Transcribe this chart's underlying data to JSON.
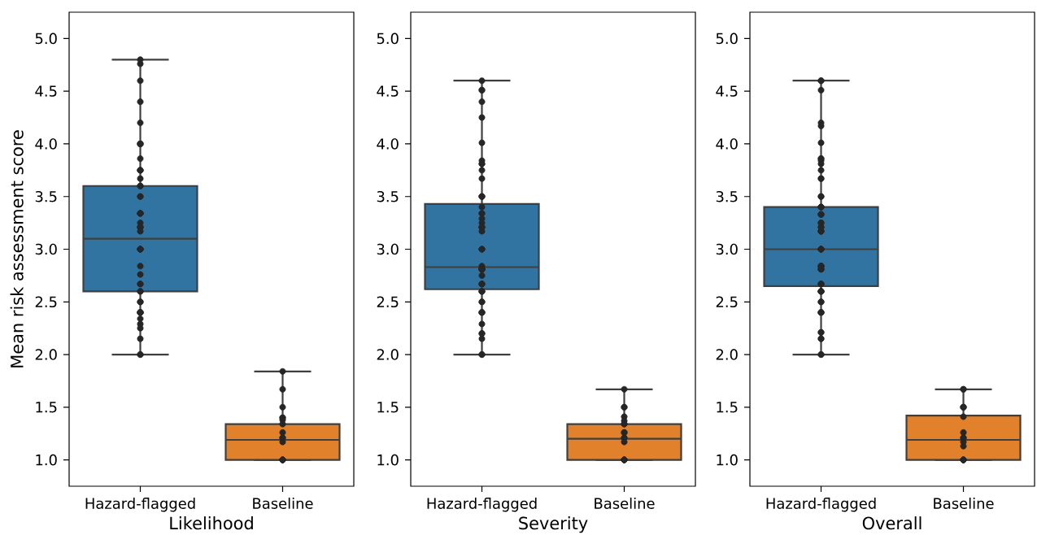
{
  "chart_data": [
    {
      "type": "box",
      "categories": [
        "Hazard-flagged",
        "Baseline"
      ],
      "xlabel": "Likelihood",
      "ylabel": "Mean risk assessment score",
      "ylim": [
        0.75,
        5.25
      ],
      "yticks": [
        {
          "value": 1.0,
          "label": "1.0"
        },
        {
          "value": 1.5,
          "label": "1.5"
        },
        {
          "value": 2.0,
          "label": "2.0"
        },
        {
          "value": 2.5,
          "label": "2.5"
        },
        {
          "value": 3.0,
          "label": "3.0"
        },
        {
          "value": 3.5,
          "label": "3.5"
        },
        {
          "value": 4.0,
          "label": "4.0"
        },
        {
          "value": 4.5,
          "label": "4.5"
        },
        {
          "value": 5.0,
          "label": "5.0"
        }
      ],
      "colors": [
        "#3274a1",
        "#e1812c"
      ],
      "boxes": [
        {
          "low": 2.0,
          "q1": 2.6,
          "median": 3.1,
          "q3": 3.6,
          "high": 4.8
        },
        {
          "low": 1.0,
          "q1": 1.0,
          "median": 1.19,
          "q3": 1.34,
          "high": 1.84
        }
      ],
      "series": [
        {
          "type": "scatter",
          "color": "#262626",
          "marker": "circle",
          "x": [
            "Hazard-flagged",
            "Hazard-flagged",
            "Hazard-flagged",
            "Hazard-flagged",
            "Hazard-flagged",
            "Hazard-flagged",
            "Hazard-flagged",
            "Hazard-flagged",
            "Hazard-flagged",
            "Hazard-flagged",
            "Hazard-flagged",
            "Hazard-flagged",
            "Hazard-flagged",
            "Hazard-flagged",
            "Hazard-flagged",
            "Hazard-flagged",
            "Hazard-flagged",
            "Hazard-flagged",
            "Hazard-flagged",
            "Hazard-flagged",
            "Hazard-flagged",
            "Hazard-flagged",
            "Hazard-flagged",
            "Hazard-flagged",
            "Hazard-flagged",
            "Hazard-flagged",
            "Hazard-flagged",
            "Hazard-flagged",
            "Hazard-flagged",
            "Hazard-flagged",
            "Hazard-flagged",
            "Hazard-flagged",
            "Hazard-flagged",
            "Hazard-flagged",
            "Hazard-flagged",
            "Hazard-flagged",
            "Hazard-flagged",
            "Hazard-flagged",
            "Hazard-flagged",
            "Hazard-flagged",
            "Hazard-flagged",
            "Hazard-flagged",
            "Hazard-flagged",
            "Hazard-flagged",
            "Hazard-flagged",
            "Hazard-flagged",
            "Hazard-flagged",
            "Hazard-flagged",
            "Hazard-flagged",
            "Baseline",
            "Baseline",
            "Baseline",
            "Baseline",
            "Baseline",
            "Baseline",
            "Baseline",
            "Baseline",
            "Baseline",
            "Baseline",
            "Baseline",
            "Baseline",
            "Baseline",
            "Baseline",
            "Baseline",
            "Baseline"
          ],
          "values": [
            4.8,
            4.76,
            4.6,
            4.4,
            4.2,
            4.0,
            4.0,
            4.0,
            3.86,
            3.75,
            3.75,
            3.75,
            3.67,
            3.6,
            3.6,
            3.5,
            3.5,
            3.34,
            3.34,
            3.34,
            3.34,
            3.25,
            3.21,
            3.21,
            3.21,
            3.17,
            3.0,
            3.0,
            3.0,
            3.0,
            3.0,
            2.84,
            2.76,
            2.67,
            2.67,
            2.6,
            2.6,
            2.5,
            2.5,
            2.4,
            2.4,
            2.4,
            2.4,
            2.34,
            2.29,
            2.25,
            2.15,
            2.0,
            2.0,
            1.84,
            1.67,
            1.5,
            1.4,
            1.4,
            1.38,
            1.34,
            1.26,
            1.21,
            1.21,
            1.17,
            1.0,
            1.0,
            1.0,
            1.0,
            1.0
          ]
        }
      ]
    },
    {
      "type": "box",
      "categories": [
        "Hazard-flagged",
        "Baseline"
      ],
      "xlabel": "Severity",
      "ylim": [
        0.75,
        5.25
      ],
      "yticks": [
        {
          "value": 1.0,
          "label": "1.0"
        },
        {
          "value": 1.5,
          "label": "1.5"
        },
        {
          "value": 2.0,
          "label": "2.0"
        },
        {
          "value": 2.5,
          "label": "2.5"
        },
        {
          "value": 3.0,
          "label": "3.0"
        },
        {
          "value": 3.5,
          "label": "3.5"
        },
        {
          "value": 4.0,
          "label": "4.0"
        },
        {
          "value": 4.5,
          "label": "4.5"
        },
        {
          "value": 5.0,
          "label": "5.0"
        }
      ],
      "colors": [
        "#3274a1",
        "#e1812c"
      ],
      "boxes": [
        {
          "low": 2.0,
          "q1": 2.62,
          "median": 2.83,
          "q3": 3.43,
          "high": 4.6
        },
        {
          "low": 1.0,
          "q1": 1.0,
          "median": 1.2,
          "q3": 1.34,
          "high": 1.67
        }
      ],
      "series": [
        {
          "type": "scatter",
          "color": "#262626",
          "marker": "circle",
          "x": [
            "Hazard-flagged",
            "Hazard-flagged",
            "Hazard-flagged",
            "Hazard-flagged",
            "Hazard-flagged",
            "Hazard-flagged",
            "Hazard-flagged",
            "Hazard-flagged",
            "Hazard-flagged",
            "Hazard-flagged",
            "Hazard-flagged",
            "Hazard-flagged",
            "Hazard-flagged",
            "Hazard-flagged",
            "Hazard-flagged",
            "Hazard-flagged",
            "Hazard-flagged",
            "Hazard-flagged",
            "Hazard-flagged",
            "Hazard-flagged",
            "Hazard-flagged",
            "Hazard-flagged",
            "Hazard-flagged",
            "Hazard-flagged",
            "Hazard-flagged",
            "Hazard-flagged",
            "Hazard-flagged",
            "Hazard-flagged",
            "Hazard-flagged",
            "Hazard-flagged",
            "Hazard-flagged",
            "Hazard-flagged",
            "Hazard-flagged",
            "Hazard-flagged",
            "Hazard-flagged",
            "Hazard-flagged",
            "Hazard-flagged",
            "Hazard-flagged",
            "Hazard-flagged",
            "Hazard-flagged",
            "Hazard-flagged",
            "Hazard-flagged",
            "Hazard-flagged",
            "Hazard-flagged",
            "Hazard-flagged",
            "Hazard-flagged",
            "Hazard-flagged",
            "Hazard-flagged",
            "Hazard-flagged",
            "Hazard-flagged",
            "Baseline",
            "Baseline",
            "Baseline",
            "Baseline",
            "Baseline",
            "Baseline",
            "Baseline",
            "Baseline",
            "Baseline",
            "Baseline",
            "Baseline",
            "Baseline",
            "Baseline",
            "Baseline",
            "Baseline",
            "Baseline",
            "Baseline"
          ],
          "values": [
            4.6,
            4.51,
            4.51,
            4.4,
            4.25,
            4.01,
            3.84,
            3.81,
            3.81,
            3.75,
            3.67,
            3.5,
            3.5,
            3.5,
            3.4,
            3.34,
            3.34,
            3.29,
            3.25,
            3.21,
            3.21,
            3.21,
            3.17,
            3.0,
            3.0,
            3.0,
            2.84,
            2.81,
            2.81,
            2.81,
            2.81,
            2.81,
            2.75,
            2.67,
            2.67,
            2.67,
            2.6,
            2.6,
            2.6,
            2.5,
            2.5,
            2.4,
            2.4,
            2.4,
            2.29,
            2.2,
            2.2,
            2.15,
            2.0,
            2.0,
            1.67,
            1.5,
            1.5,
            1.41,
            1.37,
            1.34,
            1.34,
            1.26,
            1.26,
            1.21,
            1.21,
            1.17,
            1.0,
            1.0,
            1.0,
            1.0,
            1.0
          ]
        }
      ]
    },
    {
      "type": "box",
      "categories": [
        "Hazard-flagged",
        "Baseline"
      ],
      "xlabel": "Overall",
      "ylim": [
        0.75,
        5.25
      ],
      "yticks": [
        {
          "value": 1.0,
          "label": "1.0"
        },
        {
          "value": 1.5,
          "label": "1.5"
        },
        {
          "value": 2.0,
          "label": "2.0"
        },
        {
          "value": 2.5,
          "label": "2.5"
        },
        {
          "value": 3.0,
          "label": "3.0"
        },
        {
          "value": 3.5,
          "label": "3.5"
        },
        {
          "value": 4.0,
          "label": "4.0"
        },
        {
          "value": 4.5,
          "label": "4.5"
        },
        {
          "value": 5.0,
          "label": "5.0"
        }
      ],
      "colors": [
        "#3274a1",
        "#e1812c"
      ],
      "boxes": [
        {
          "low": 2.0,
          "q1": 2.65,
          "median": 3.0,
          "q3": 3.4,
          "high": 4.6
        },
        {
          "low": 1.0,
          "q1": 1.0,
          "median": 1.19,
          "q3": 1.42,
          "high": 1.67
        }
      ],
      "series": [
        {
          "type": "scatter",
          "color": "#262626",
          "marker": "circle",
          "x": [
            "Hazard-flagged",
            "Hazard-flagged",
            "Hazard-flagged",
            "Hazard-flagged",
            "Hazard-flagged",
            "Hazard-flagged",
            "Hazard-flagged",
            "Hazard-flagged",
            "Hazard-flagged",
            "Hazard-flagged",
            "Hazard-flagged",
            "Hazard-flagged",
            "Hazard-flagged",
            "Hazard-flagged",
            "Hazard-flagged",
            "Hazard-flagged",
            "Hazard-flagged",
            "Hazard-flagged",
            "Hazard-flagged",
            "Hazard-flagged",
            "Hazard-flagged",
            "Hazard-flagged",
            "Hazard-flagged",
            "Hazard-flagged",
            "Hazard-flagged",
            "Hazard-flagged",
            "Hazard-flagged",
            "Hazard-flagged",
            "Hazard-flagged",
            "Hazard-flagged",
            "Hazard-flagged",
            "Hazard-flagged",
            "Hazard-flagged",
            "Hazard-flagged",
            "Hazard-flagged",
            "Hazard-flagged",
            "Hazard-flagged",
            "Hazard-flagged",
            "Hazard-flagged",
            "Hazard-flagged",
            "Hazard-flagged",
            "Hazard-flagged",
            "Hazard-flagged",
            "Hazard-flagged",
            "Hazard-flagged",
            "Hazard-flagged",
            "Hazard-flagged",
            "Hazard-flagged",
            "Hazard-flagged",
            "Hazard-flagged",
            "Hazard-flagged",
            "Hazard-flagged",
            "Hazard-flagged",
            "Hazard-flagged",
            "Hazard-flagged",
            "Hazard-flagged",
            "Hazard-flagged",
            "Baseline",
            "Baseline",
            "Baseline",
            "Baseline",
            "Baseline",
            "Baseline",
            "Baseline",
            "Baseline",
            "Baseline",
            "Baseline",
            "Baseline",
            "Baseline",
            "Baseline",
            "Baseline",
            "Baseline",
            "Baseline"
          ],
          "values": [
            4.6,
            4.6,
            4.51,
            4.2,
            4.17,
            4.01,
            3.86,
            3.86,
            3.84,
            3.81,
            3.75,
            3.67,
            3.67,
            3.5,
            3.5,
            3.4,
            3.4,
            3.4,
            3.33,
            3.33,
            3.33,
            3.25,
            3.25,
            3.21,
            3.21,
            3.17,
            3.17,
            3.17,
            3.0,
            3.0,
            3.0,
            3.0,
            3.0,
            2.84,
            2.84,
            2.84,
            2.81,
            2.81,
            2.81,
            2.67,
            2.67,
            2.67,
            2.6,
            2.6,
            2.6,
            2.6,
            2.5,
            2.5,
            2.4,
            2.4,
            2.4,
            2.21,
            2.21,
            2.15,
            2.15,
            2.0,
            2.0,
            1.67,
            1.67,
            1.5,
            1.5,
            1.5,
            1.41,
            1.26,
            1.21,
            1.21,
            1.17,
            1.13,
            1.0,
            1.0,
            1.0,
            1.0,
            1.0
          ]
        }
      ]
    }
  ]
}
